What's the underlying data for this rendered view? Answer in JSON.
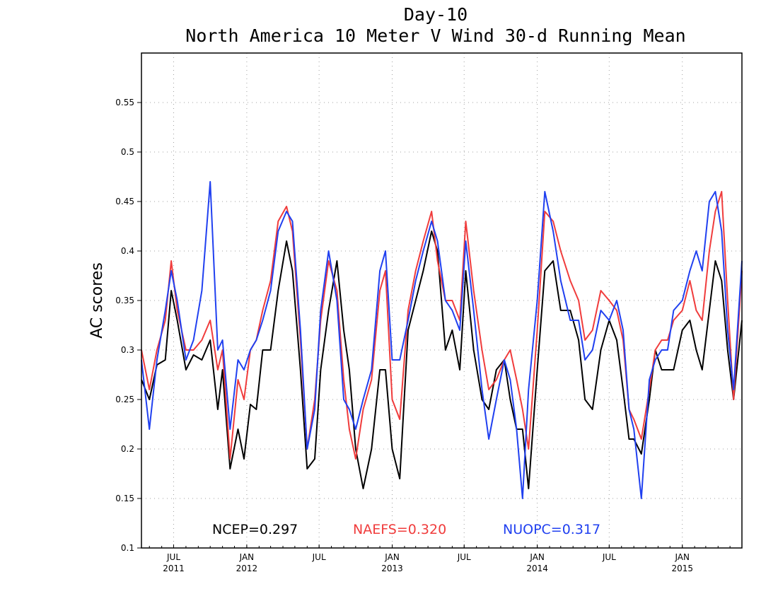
{
  "chart_data": {
    "type": "line",
    "title": "Day-10",
    "subtitle": "North America 10 Meter V Wind 30-d Running Mean",
    "ylabel": "AC scores",
    "xlabel": "",
    "ylim": [
      0.1,
      0.6
    ],
    "yticks": [
      0.1,
      0.15,
      0.2,
      0.25,
      0.3,
      0.35,
      0.4,
      0.45,
      0.5,
      0.55
    ],
    "ytick_labels": [
      "0.1",
      "0.15",
      "0.2",
      "0.25",
      "0.3",
      "0.35",
      "0.4",
      "0.45",
      "0.5",
      "0.55"
    ],
    "xlim": [
      "2011-04-11",
      "2015-05-31"
    ],
    "xticks": [
      {
        "date": "2011-07-01",
        "label": "JUL",
        "year": "2011"
      },
      {
        "date": "2012-01-01",
        "label": "JAN",
        "year": "2012"
      },
      {
        "date": "2012-07-01",
        "label": "JUL",
        "year": ""
      },
      {
        "date": "2013-01-01",
        "label": "JAN",
        "year": "2013"
      },
      {
        "date": "2013-07-01",
        "label": "JUL",
        "year": ""
      },
      {
        "date": "2014-01-01",
        "label": "JAN",
        "year": "2014"
      },
      {
        "date": "2014-07-01",
        "label": "JUL",
        "year": ""
      },
      {
        "date": "2015-01-01",
        "label": "JAN",
        "year": "2015"
      }
    ],
    "grid": true,
    "legend_position": "bottom",
    "series": [
      {
        "name": "NCEP",
        "label": "NCEP=0.297",
        "color": "#000000",
        "x": [
          "2011-04-11",
          "2011-05-01",
          "2011-05-20",
          "2011-06-10",
          "2011-06-25",
          "2011-07-10",
          "2011-08-01",
          "2011-08-20",
          "2011-09-10",
          "2011-10-01",
          "2011-10-20",
          "2011-11-01",
          "2011-11-20",
          "2011-12-10",
          "2011-12-25",
          "2012-01-10",
          "2012-01-25",
          "2012-02-10",
          "2012-03-01",
          "2012-03-20",
          "2012-04-10",
          "2012-04-25",
          "2012-05-15",
          "2012-06-01",
          "2012-06-20",
          "2012-07-05",
          "2012-07-25",
          "2012-08-15",
          "2012-09-01",
          "2012-09-15",
          "2012-10-01",
          "2012-10-20",
          "2012-11-10",
          "2012-12-01",
          "2012-12-15",
          "2013-01-01",
          "2013-01-20",
          "2013-02-10",
          "2013-03-01",
          "2013-03-20",
          "2013-04-10",
          "2013-04-25",
          "2013-05-15",
          "2013-06-01",
          "2013-06-20",
          "2013-07-05",
          "2013-07-25",
          "2013-08-15",
          "2013-09-01",
          "2013-09-20",
          "2013-10-10",
          "2013-10-25",
          "2013-11-10",
          "2013-11-25",
          "2013-12-10",
          "2014-01-01",
          "2014-01-20",
          "2014-02-10",
          "2014-03-01",
          "2014-03-25",
          "2014-04-15",
          "2014-05-01",
          "2014-05-20",
          "2014-06-10",
          "2014-07-01",
          "2014-07-20",
          "2014-08-05",
          "2014-08-20",
          "2014-09-01",
          "2014-09-20",
          "2014-10-10",
          "2014-10-25",
          "2014-11-10",
          "2014-11-25",
          "2014-12-10",
          "2015-01-01",
          "2015-01-20",
          "2015-02-05",
          "2015-02-20",
          "2015-03-10",
          "2015-03-25",
          "2015-04-10",
          "2015-04-25",
          "2015-05-10",
          "2015-05-31"
        ],
        "values": [
          0.27,
          0.25,
          0.285,
          0.29,
          0.36,
          0.33,
          0.28,
          0.295,
          0.29,
          0.31,
          0.24,
          0.28,
          0.18,
          0.22,
          0.19,
          0.245,
          0.24,
          0.3,
          0.3,
          0.36,
          0.41,
          0.38,
          0.28,
          0.18,
          0.19,
          0.28,
          0.34,
          0.39,
          0.32,
          0.28,
          0.2,
          0.16,
          0.2,
          0.28,
          0.28,
          0.2,
          0.17,
          0.32,
          0.35,
          0.38,
          0.42,
          0.4,
          0.3,
          0.32,
          0.28,
          0.38,
          0.3,
          0.25,
          0.24,
          0.28,
          0.29,
          0.25,
          0.22,
          0.22,
          0.16,
          0.28,
          0.38,
          0.39,
          0.34,
          0.34,
          0.31,
          0.25,
          0.24,
          0.3,
          0.33,
          0.31,
          0.26,
          0.21,
          0.21,
          0.195,
          0.25,
          0.3,
          0.28,
          0.28,
          0.28,
          0.32,
          0.33,
          0.3,
          0.28,
          0.34,
          0.39,
          0.37,
          0.3,
          0.25,
          0.33
        ]
      },
      {
        "name": "NAEFS",
        "label": "NAEFS=0.320",
        "color": "#f03c3c",
        "x": [
          "2011-04-11",
          "2011-05-01",
          "2011-05-20",
          "2011-06-10",
          "2011-06-25",
          "2011-07-10",
          "2011-08-01",
          "2011-08-20",
          "2011-09-10",
          "2011-10-01",
          "2011-10-20",
          "2011-11-01",
          "2011-11-20",
          "2011-12-10",
          "2011-12-25",
          "2012-01-10",
          "2012-01-25",
          "2012-02-10",
          "2012-03-01",
          "2012-03-20",
          "2012-04-10",
          "2012-04-25",
          "2012-05-15",
          "2012-06-01",
          "2012-06-20",
          "2012-07-05",
          "2012-07-25",
          "2012-08-15",
          "2012-09-01",
          "2012-09-15",
          "2012-10-01",
          "2012-10-20",
          "2012-11-10",
          "2012-12-01",
          "2012-12-15",
          "2013-01-01",
          "2013-01-20",
          "2013-02-10",
          "2013-03-01",
          "2013-03-20",
          "2013-04-10",
          "2013-04-25",
          "2013-05-15",
          "2013-06-01",
          "2013-06-20",
          "2013-07-05",
          "2013-07-25",
          "2013-08-15",
          "2013-09-01",
          "2013-09-20",
          "2013-10-10",
          "2013-10-25",
          "2013-11-10",
          "2013-11-25",
          "2013-12-10",
          "2014-01-01",
          "2014-01-20",
          "2014-02-10",
          "2014-03-01",
          "2014-03-25",
          "2014-04-15",
          "2014-05-01",
          "2014-05-20",
          "2014-06-10",
          "2014-07-01",
          "2014-07-20",
          "2014-08-05",
          "2014-08-20",
          "2014-09-01",
          "2014-09-20",
          "2014-10-10",
          "2014-10-25",
          "2014-11-10",
          "2014-11-25",
          "2014-12-10",
          "2015-01-01",
          "2015-01-20",
          "2015-02-05",
          "2015-02-20",
          "2015-03-10",
          "2015-03-25",
          "2015-04-10",
          "2015-04-25",
          "2015-05-10",
          "2015-05-31"
        ],
        "values": [
          0.3,
          0.26,
          0.3,
          0.33,
          0.39,
          0.34,
          0.3,
          0.3,
          0.31,
          0.33,
          0.28,
          0.3,
          0.19,
          0.27,
          0.25,
          0.3,
          0.31,
          0.34,
          0.37,
          0.43,
          0.445,
          0.42,
          0.31,
          0.2,
          0.25,
          0.33,
          0.39,
          0.36,
          0.27,
          0.22,
          0.19,
          0.24,
          0.27,
          0.36,
          0.38,
          0.25,
          0.23,
          0.34,
          0.38,
          0.41,
          0.44,
          0.39,
          0.35,
          0.35,
          0.33,
          0.43,
          0.36,
          0.3,
          0.26,
          0.27,
          0.29,
          0.3,
          0.27,
          0.24,
          0.2,
          0.32,
          0.44,
          0.43,
          0.4,
          0.37,
          0.35,
          0.31,
          0.32,
          0.36,
          0.35,
          0.34,
          0.31,
          0.24,
          0.23,
          0.21,
          0.26,
          0.3,
          0.31,
          0.31,
          0.33,
          0.34,
          0.37,
          0.34,
          0.33,
          0.4,
          0.44,
          0.46,
          0.35,
          0.25,
          0.38
        ]
      },
      {
        "name": "NUOPC",
        "label": "NUOPC=0.317",
        "color": "#2040f0",
        "x": [
          "2011-04-11",
          "2011-05-01",
          "2011-05-20",
          "2011-06-10",
          "2011-06-25",
          "2011-07-10",
          "2011-08-01",
          "2011-08-20",
          "2011-09-10",
          "2011-10-01",
          "2011-10-20",
          "2011-11-01",
          "2011-11-20",
          "2011-12-10",
          "2011-12-25",
          "2012-01-10",
          "2012-01-25",
          "2012-02-10",
          "2012-03-01",
          "2012-03-20",
          "2012-04-10",
          "2012-04-25",
          "2012-05-15",
          "2012-06-01",
          "2012-06-20",
          "2012-07-05",
          "2012-07-25",
          "2012-08-15",
          "2012-09-01",
          "2012-09-15",
          "2012-10-01",
          "2012-10-20",
          "2012-11-10",
          "2012-12-01",
          "2012-12-15",
          "2013-01-01",
          "2013-01-20",
          "2013-02-10",
          "2013-03-01",
          "2013-03-20",
          "2013-04-10",
          "2013-04-25",
          "2013-05-15",
          "2013-06-01",
          "2013-06-20",
          "2013-07-05",
          "2013-07-25",
          "2013-08-15",
          "2013-09-01",
          "2013-09-20",
          "2013-10-10",
          "2013-10-25",
          "2013-11-10",
          "2013-11-25",
          "2013-12-10",
          "2014-01-01",
          "2014-01-20",
          "2014-02-10",
          "2014-03-01",
          "2014-03-25",
          "2014-04-15",
          "2014-05-01",
          "2014-05-20",
          "2014-06-10",
          "2014-07-01",
          "2014-07-20",
          "2014-08-05",
          "2014-08-20",
          "2014-09-01",
          "2014-09-20",
          "2014-10-10",
          "2014-10-25",
          "2014-11-10",
          "2014-11-25",
          "2014-12-10",
          "2015-01-01",
          "2015-01-20",
          "2015-02-05",
          "2015-02-20",
          "2015-03-10",
          "2015-03-25",
          "2015-04-10",
          "2015-04-25",
          "2015-05-10",
          "2015-05-31"
        ],
        "values": [
          0.29,
          0.22,
          0.29,
          0.34,
          0.38,
          0.35,
          0.29,
          0.31,
          0.36,
          0.47,
          0.3,
          0.31,
          0.22,
          0.29,
          0.28,
          0.3,
          0.31,
          0.33,
          0.36,
          0.42,
          0.44,
          0.43,
          0.32,
          0.2,
          0.24,
          0.34,
          0.4,
          0.35,
          0.25,
          0.24,
          0.22,
          0.25,
          0.28,
          0.38,
          0.4,
          0.29,
          0.29,
          0.33,
          0.37,
          0.4,
          0.43,
          0.41,
          0.35,
          0.34,
          0.32,
          0.41,
          0.34,
          0.26,
          0.21,
          0.25,
          0.29,
          0.27,
          0.22,
          0.15,
          0.26,
          0.35,
          0.46,
          0.42,
          0.37,
          0.33,
          0.33,
          0.29,
          0.3,
          0.34,
          0.33,
          0.35,
          0.32,
          0.24,
          0.22,
          0.15,
          0.27,
          0.29,
          0.3,
          0.3,
          0.34,
          0.35,
          0.38,
          0.4,
          0.38,
          0.45,
          0.46,
          0.42,
          0.32,
          0.26,
          0.39
        ]
      }
    ]
  }
}
